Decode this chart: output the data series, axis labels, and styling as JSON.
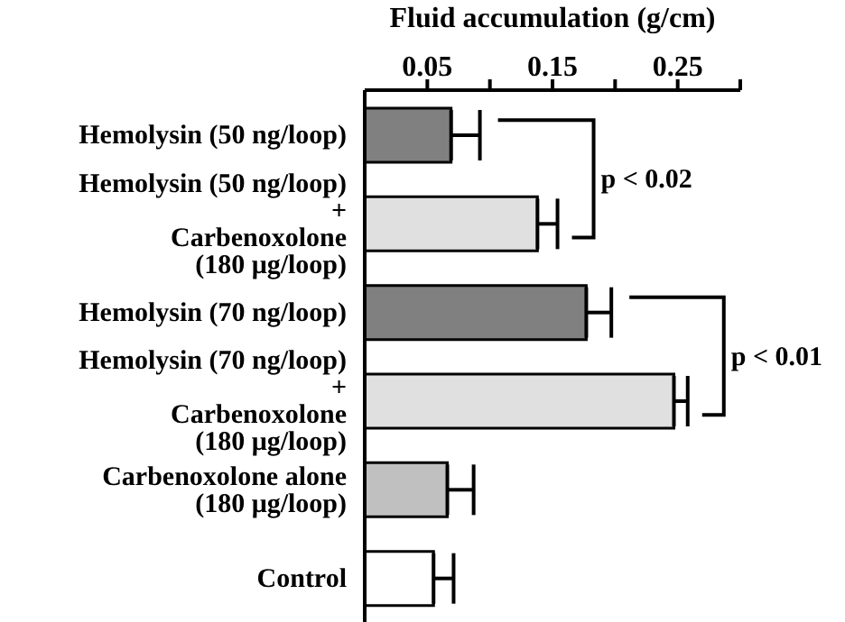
{
  "chart_data": {
    "type": "bar",
    "orientation": "horizontal",
    "title": "Fluid accumulation (g/cm)",
    "categories": [
      "Hemolysin (50 ng/loop)",
      "Hemolysin (50 ng/loop)\n+\nCarbenoxolone\n(180 μg/loop)",
      "Hemolysin (70 ng/loop)",
      "Hemolysin (70 ng/loop)\n+\nCarbenoxolone\n(180 μg/loop)",
      "Carbenoxolone alone\n(180 μg/loop)",
      "Control"
    ],
    "values": [
      0.069,
      0.138,
      0.177,
      0.247,
      0.066,
      0.055
    ],
    "errors": [
      0.023,
      0.016,
      0.02,
      0.011,
      0.021,
      0.016
    ],
    "colors": [
      "#808080",
      "#e0e0e0",
      "#808080",
      "#e0e0e0",
      "#c0c0c0",
      "#ffffff"
    ],
    "xlim": [
      0,
      0.3
    ],
    "xticks": [
      0.05,
      {
        "value": 0.1,
        "label": null
      },
      0.15,
      {
        "value": 0.2,
        "label": null
      },
      0.25,
      {
        "value": 0.3,
        "label": null
      }
    ],
    "annotations": [
      "p < 0.02",
      "p < 0.01"
    ]
  }
}
